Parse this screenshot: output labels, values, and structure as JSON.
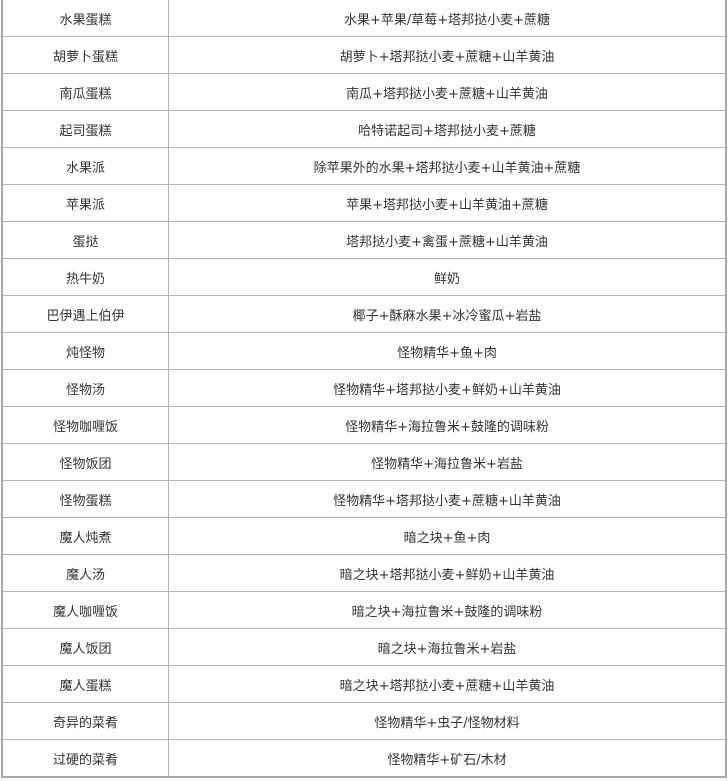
{
  "recipes": [
    {
      "name": "水果蛋糕",
      "ingredients": "水果+苹果/草莓+塔邦挞小麦+蔗糖"
    },
    {
      "name": "胡萝卜蛋糕",
      "ingredients": "胡萝卜+塔邦挞小麦+蔗糖+山羊黄油"
    },
    {
      "name": "南瓜蛋糕",
      "ingredients": "南瓜+塔邦挞小麦+蔗糖+山羊黄油"
    },
    {
      "name": "起司蛋糕",
      "ingredients": "哈特诺起司+塔邦挞小麦+蔗糖"
    },
    {
      "name": "水果派",
      "ingredients": "除苹果外的水果+塔邦挞小麦+山羊黄油+蔗糖"
    },
    {
      "name": "苹果派",
      "ingredients": "苹果+塔邦挞小麦+山羊黄油+蔗糖"
    },
    {
      "name": "蛋挞",
      "ingredients": "塔邦挞小麦+禽蛋+蔗糖+山羊黄油"
    },
    {
      "name": "热牛奶",
      "ingredients": "鲜奶"
    },
    {
      "name": "巴伊遇上伯伊",
      "ingredients": "椰子+酥麻水果+冰冷蜜瓜+岩盐"
    },
    {
      "name": "炖怪物",
      "ingredients": "怪物精华+鱼+肉"
    },
    {
      "name": "怪物汤",
      "ingredients": "怪物精华+塔邦挞小麦+鲜奶+山羊黄油"
    },
    {
      "name": "怪物咖喱饭",
      "ingredients": "怪物精华+海拉鲁米+鼓隆的调味粉"
    },
    {
      "name": "怪物饭团",
      "ingredients": "怪物精华+海拉鲁米+岩盐"
    },
    {
      "name": "怪物蛋糕",
      "ingredients": "怪物精华+塔邦挞小麦+蔗糖+山羊黄油"
    },
    {
      "name": "魔人炖煮",
      "ingredients": "暗之块+鱼+肉"
    },
    {
      "name": "魔人汤",
      "ingredients": "暗之块+塔邦挞小麦+鲜奶+山羊黄油"
    },
    {
      "name": "魔人咖喱饭",
      "ingredients": "暗之块+海拉鲁米+鼓隆的调味粉"
    },
    {
      "name": "魔人饭团",
      "ingredients": "暗之块+海拉鲁米+岩盐"
    },
    {
      "name": "魔人蛋糕",
      "ingredients": "暗之块+塔邦挞小麦+蔗糖+山羊黄油"
    },
    {
      "name": "奇异的菜肴",
      "ingredients": "怪物精华+虫子/怪物材料"
    },
    {
      "name": "过硬的菜肴",
      "ingredients": "怪物精华+矿石/木材"
    }
  ]
}
